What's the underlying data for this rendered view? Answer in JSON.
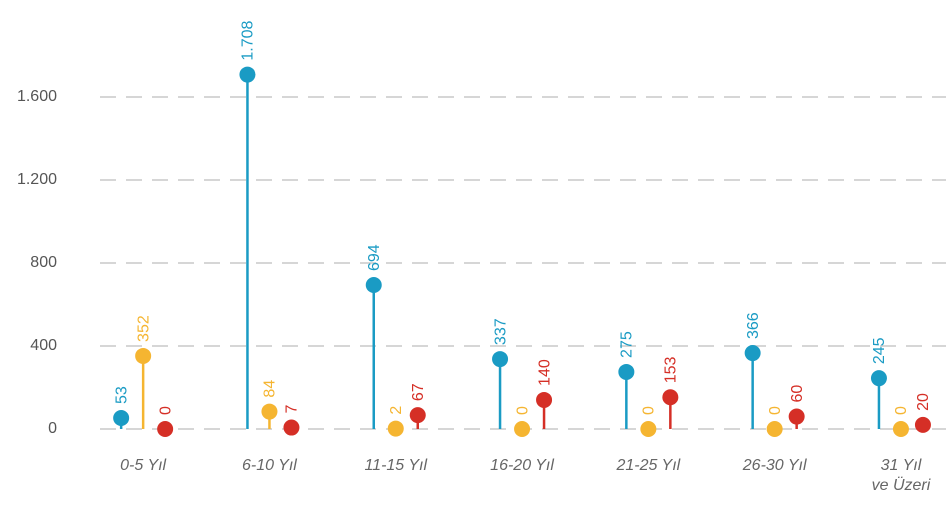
{
  "chart_data": {
    "type": "lollipop",
    "categories": [
      "0-5 Yıl",
      "6-10 Yıl",
      "11-15 Yıl",
      "16-20 Yıl",
      "21-25 Yıl",
      "26-30 Yıl",
      "31 Yıl\nve Üzeri"
    ],
    "series": [
      {
        "color": "#1a9bc4",
        "values": [
          53,
          1708,
          694,
          337,
          275,
          366,
          245
        ],
        "value_labels": [
          "53",
          "1.708",
          "694",
          "337",
          "275",
          "366",
          "245"
        ]
      },
      {
        "color": "#f5b531",
        "values": [
          352,
          84,
          2,
          0,
          0,
          0,
          0
        ]
      },
      {
        "color": "#d52f26",
        "values": [
          0,
          7,
          67,
          140,
          153,
          60,
          20
        ]
      }
    ],
    "ylim": [
      0,
      2000
    ],
    "yticks": [
      0,
      400,
      800,
      {
        "value": 1200,
        "label": "1.200"
      },
      {
        "value": 1600,
        "label": "1.600"
      }
    ],
    "grid": true
  }
}
